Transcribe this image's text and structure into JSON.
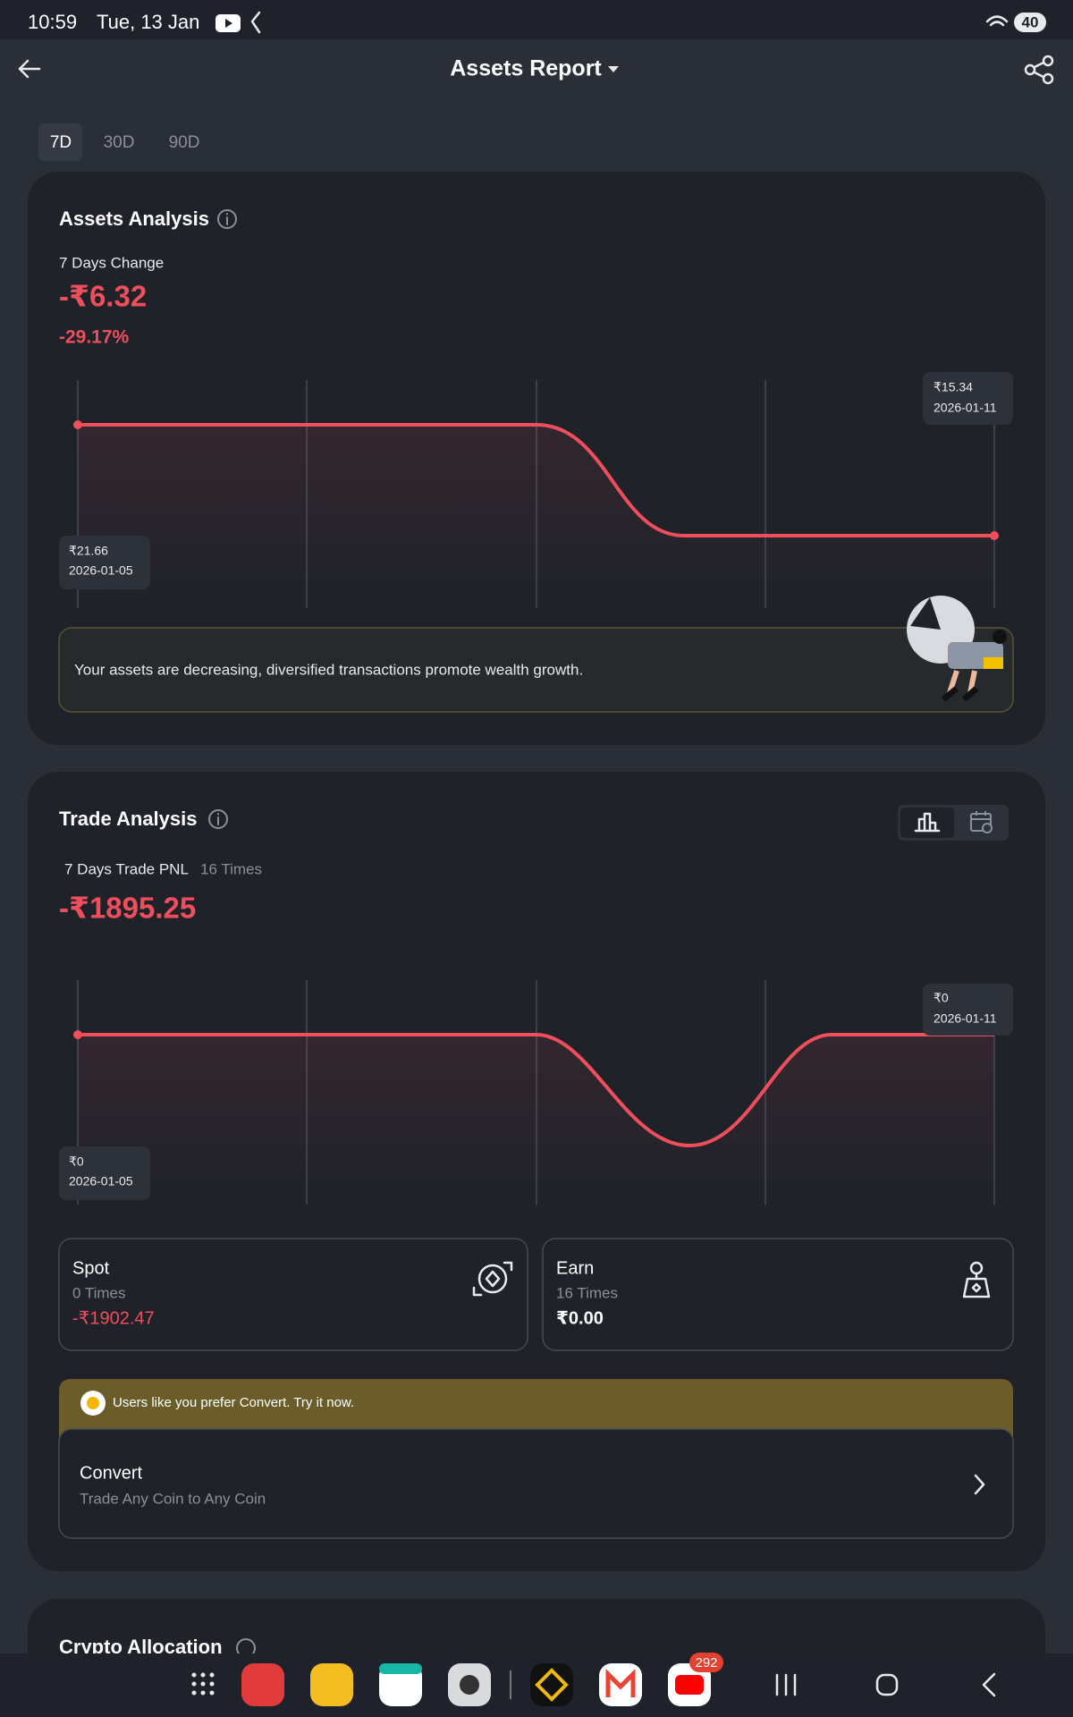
{
  "status": {
    "time": "10:59",
    "date": "Tue, 13 Jan",
    "battery": "40"
  },
  "header": {
    "title": "Assets Report"
  },
  "tabs": [
    "7D",
    "30D",
    "90D"
  ],
  "assets_analysis": {
    "title": "Assets Analysis",
    "change_label": "7 Days Change",
    "change_value": "-₹6.32",
    "change_percent": "-29.17%",
    "end_point": {
      "value": "₹15.34",
      "date": "2026-01-11"
    },
    "start_point": {
      "value": "₹21.66",
      "date": "2026-01-05"
    },
    "message": "Your assets are decreasing, diversified transactions promote wealth growth."
  },
  "trade_analysis": {
    "title": "Trade Analysis",
    "pnl_label": "7 Days Trade PNL",
    "pnl_count": "16 Times",
    "pnl_value": "-₹1895.25",
    "end_point": {
      "value": "₹0",
      "date": "2026-01-11"
    },
    "start_point": {
      "value": "₹0",
      "date": "2026-01-05"
    },
    "spot": {
      "title": "Spot",
      "count": "0 Times",
      "value": "-₹1902.47"
    },
    "earn": {
      "title": "Earn",
      "count": "16 Times",
      "value": "₹0.00"
    },
    "promo": "Users like you prefer Convert. Try it now.",
    "convert": {
      "title": "Convert",
      "subtitle": "Trade Any Coin to Any Coin"
    }
  },
  "crypto_allocation": {
    "title": "Crypto Allocation"
  },
  "nav": {
    "badge": "292"
  }
}
